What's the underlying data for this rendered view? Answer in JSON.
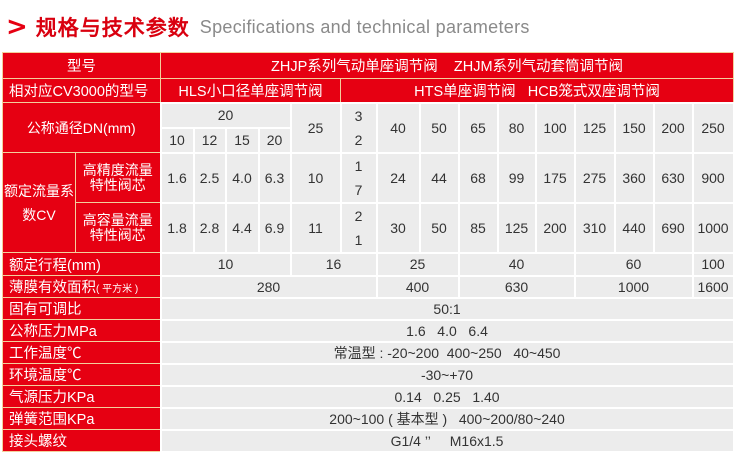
{
  "header": {
    "title_cn": "规格与技术参数",
    "title_en": "Specifications and technical parameters",
    "accent_color": "#e60012"
  },
  "table": {
    "model_label": "型号",
    "model_value": "ZHJP系列气动单座调节阀    ZHJM系列气动套筒调节阀",
    "cv3000_label": "相对应CV3000的型号",
    "cv3000_hls": "HLS小口径单座调节阀",
    "cv3000_hts_hcb": "HTS单座调节阀   HCB笼式双座调节阀",
    "dn_label": "公称通径DN(mm)",
    "dn_group": "20",
    "dn_sub": [
      "10",
      "12",
      "15",
      "20"
    ],
    "dn_main": [
      "25",
      "32",
      "40",
      "50",
      "65",
      "80",
      "100",
      "125",
      "150",
      "200",
      "250"
    ],
    "cv_label": "额定流量系数CV",
    "cv_high_precision_label": "高精度流量特性阀芯",
    "cv_high_precision": [
      "1.6",
      "2.5",
      "4.0",
      "6.3",
      "10",
      "17",
      "24",
      "44",
      "68",
      "99",
      "175",
      "275",
      "360",
      "630",
      "900"
    ],
    "cv_high_capacity_label": "高容量流量特性阀芯",
    "cv_high_capacity": [
      "1.8",
      "2.8",
      "4.4",
      "6.9",
      "11",
      "21",
      "30",
      "50",
      "85",
      "125",
      "200",
      "310",
      "440",
      "690",
      "1000"
    ],
    "stroke_label": "额定行程(mm)",
    "stroke": [
      "10",
      "16",
      "25",
      "40",
      "60",
      "100"
    ],
    "area_label": "薄膜有效面积",
    "area_unit": "( 平方米 )",
    "area": [
      "280",
      "400",
      "630",
      "1000",
      "1600"
    ],
    "rows": [
      {
        "label": "固有可调比",
        "value": "50:1"
      },
      {
        "label": "公称压力MPa",
        "value": "1.6   4.0   6.4"
      },
      {
        "label": "工作温度℃",
        "value": "常温型 : -20~200  400~250   40~450"
      },
      {
        "label": "环境温度℃",
        "value": "-30~+70"
      },
      {
        "label": "气源压力KPa",
        "value": "0.14   0.25   1.40"
      },
      {
        "label": "弹簧范围KPa",
        "value": "200~100 ( 基本型 )   400~200/80~240"
      },
      {
        "label": "接头螺纹",
        "value": "G1/4 ’’     M16x1.5"
      }
    ]
  }
}
